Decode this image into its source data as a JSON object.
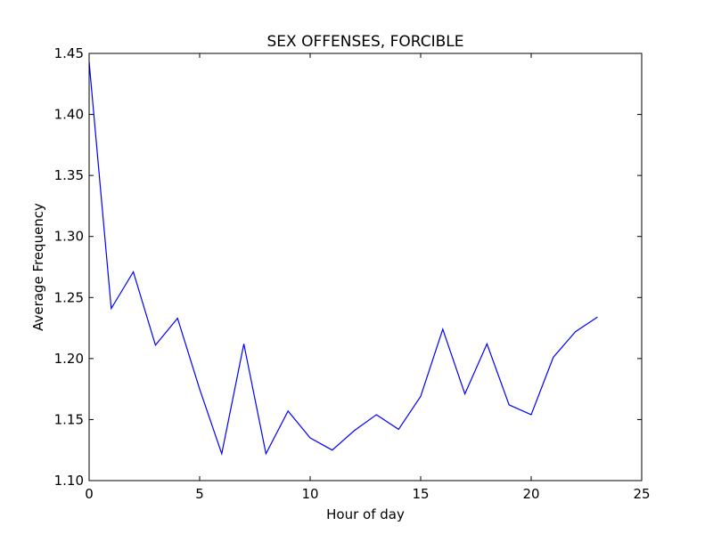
{
  "chart_data": {
    "type": "line",
    "title": "SEX OFFENSES, FORCIBLE",
    "xlabel": "Hour of day",
    "ylabel": "Average Frequency",
    "xlim": [
      0,
      25
    ],
    "ylim": [
      1.1,
      1.45
    ],
    "xticks": [
      "0",
      "5",
      "10",
      "15",
      "20",
      "25"
    ],
    "yticks": [
      "1.10",
      "1.15",
      "1.20",
      "1.25",
      "1.30",
      "1.35",
      "1.40",
      "1.45"
    ],
    "grid": false,
    "series": [
      {
        "color": "#0000ff",
        "x": [
          0,
          1,
          2,
          3,
          4,
          5,
          6,
          7,
          8,
          9,
          10,
          11,
          12,
          13,
          14,
          15,
          16,
          17,
          18,
          19,
          20,
          21,
          22,
          23
        ],
        "y": [
          1.443,
          1.241,
          1.271,
          1.211,
          1.233,
          1.175,
          1.122,
          1.212,
          1.122,
          1.157,
          1.135,
          1.125,
          1.141,
          1.154,
          1.142,
          1.169,
          1.224,
          1.171,
          1.212,
          1.162,
          1.154,
          1.201,
          1.222,
          1.234
        ]
      }
    ]
  }
}
